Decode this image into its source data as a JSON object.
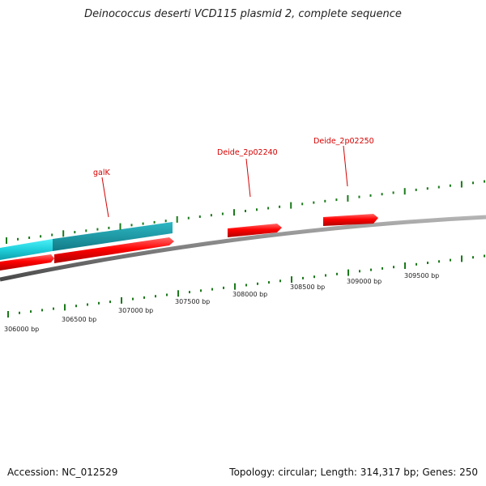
{
  "header": {
    "title": "Deinococcus deserti VCD115 plasmid 2, complete sequence"
  },
  "footer": {
    "accession": "Accession: NC_012529",
    "stats": "Topology: circular; Length: 314,317 bp; Genes: 250"
  },
  "genome": {
    "topology": "circular",
    "length_bp": 314317,
    "gene_count": 250
  },
  "scale": {
    "tick_labels": [
      "306000 bp",
      "306500 bp",
      "307000 bp",
      "307500 bp",
      "308000 bp",
      "308500 bp",
      "309000 bp",
      "309500 bp"
    ]
  },
  "genes": [
    {
      "label": "galK",
      "strand": "+",
      "color": "#ff0000"
    },
    {
      "label": "Deide_2p02240",
      "strand": "+",
      "color": "#ff0000"
    },
    {
      "label": "Deide_2p02250",
      "strand": "+",
      "color": "#ff0000"
    }
  ],
  "colors": {
    "gene": "#ff0000",
    "feature_band": "#22c8d4",
    "backbone": "#808080",
    "tick": "#1a7a1a",
    "label": "#d40000"
  }
}
